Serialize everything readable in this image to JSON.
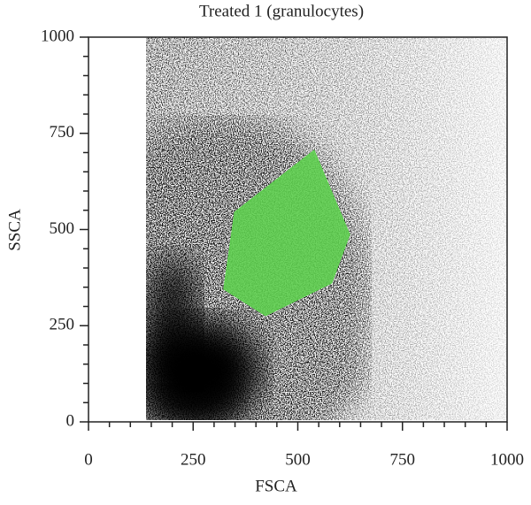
{
  "chart_data": {
    "type": "scatter",
    "title": "Treated 1 (granulocytes)",
    "x_label": "FSCA",
    "y_label": "SSCA",
    "xlim": [
      0,
      1000
    ],
    "ylim": [
      0,
      1000
    ],
    "xticks": [
      0,
      250,
      500,
      750,
      1000
    ],
    "yticks": [
      0,
      250,
      500,
      750,
      1000
    ],
    "gate": {
      "color": "#5ecf4f",
      "x": [
        349,
        539,
        624,
        581,
        423,
        323
      ],
      "y": [
        545,
        706,
        487,
        361,
        276,
        345
      ]
    }
  }
}
